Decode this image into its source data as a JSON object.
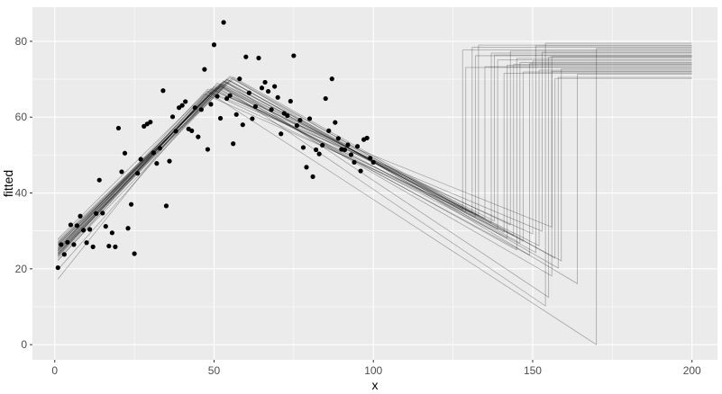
{
  "chart_data": {
    "type": "line",
    "xlabel": "x",
    "ylabel": "fitted",
    "xlim": [
      -7,
      208
    ],
    "ylim": [
      -4,
      89
    ],
    "x_ticks": [
      0,
      50,
      100,
      150,
      200
    ],
    "y_ticks": [
      0,
      20,
      40,
      60,
      80
    ],
    "x_tick_labels": [
      "0",
      "50",
      "100",
      "150",
      "200"
    ],
    "y_tick_labels": [
      "0",
      "20",
      "40",
      "60",
      "80"
    ],
    "grid": true,
    "legend": "none",
    "colors": {
      "panel": "#ebebeb",
      "grid": "#ffffff",
      "point": "#000000",
      "line": "#000000"
    },
    "points": {
      "x": [
        1,
        2,
        3,
        4,
        5,
        6,
        7,
        8,
        9,
        10,
        11,
        12,
        13,
        14,
        15,
        16,
        17,
        18,
        19,
        20,
        21,
        22,
        23,
        24,
        25,
        26,
        27,
        28,
        29,
        30,
        31,
        32,
        33,
        34,
        35,
        36,
        37,
        38,
        39,
        40,
        41,
        42,
        43,
        44,
        45,
        46,
        47,
        48,
        49,
        50,
        51,
        52,
        53,
        54,
        55,
        56,
        57,
        58,
        59,
        60,
        61,
        62,
        63,
        64,
        65,
        66,
        67,
        68,
        69,
        70,
        71,
        72,
        73,
        74,
        75,
        76,
        77,
        78,
        79,
        80,
        81,
        82,
        83,
        84,
        85,
        86,
        87,
        88,
        89,
        90,
        91,
        92,
        93,
        94,
        95,
        96,
        97,
        98,
        99,
        100
      ],
      "y": [
        20.3,
        26.4,
        23.8,
        27,
        31.6,
        26.4,
        31.4,
        33.9,
        30.2,
        26.9,
        30.4,
        25.8,
        34.6,
        43.4,
        34.7,
        31.2,
        26,
        29.5,
        25.8,
        57.1,
        45.6,
        50.5,
        30.7,
        37,
        24,
        45.2,
        48.9,
        57.6,
        58.2,
        58.7,
        50.6,
        47.8,
        51.8,
        67,
        36.6,
        48.4,
        60.1,
        56.3,
        62.5,
        63.1,
        64.1,
        56.9,
        56.4,
        62.5,
        54.8,
        62,
        72.6,
        51.5,
        63.4,
        79.1,
        65.5,
        59.7,
        85,
        64.9,
        65.7,
        53,
        60.7,
        70.1,
        58,
        75.9,
        66.4,
        59.6,
        62.8,
        75.6,
        67.7,
        69.2,
        66.8,
        62,
        68.1,
        65.2,
        55.6,
        61,
        60.4,
        64.2,
        76.2,
        57.8,
        59.2,
        52,
        46.8,
        59.6,
        44.3,
        51.4,
        50.3,
        52.6,
        64.9,
        56.4,
        70.1,
        58.6,
        54.4,
        51.5,
        51.4,
        52.7,
        50.1,
        48.1,
        52.3,
        45.8,
        54.1,
        54.5,
        49.2,
        48.1
      ]
    },
    "fits": [
      {
        "b": 48,
        "y0": 25.1,
        "yb": 67.4,
        "yend": 31.0,
        "jump": 156,
        "ymax": 76.0
      },
      {
        "b": 49,
        "y0": 24.7,
        "yb": 67.5,
        "yend": 29.2,
        "jump": 150,
        "ymax": 74.8
      },
      {
        "b": 50,
        "y0": 25.6,
        "yb": 68.0,
        "yend": 28.1,
        "jump": 142,
        "ymax": 73.7
      },
      {
        "b": 51,
        "y0": 23.2,
        "yb": 68.5,
        "yend": 25.0,
        "jump": 145,
        "ymax": 75.5
      },
      {
        "b": 52,
        "y0": 24.3,
        "yb": 68.9,
        "yend": 32.6,
        "jump": 138,
        "ymax": 76.4
      },
      {
        "b": 53,
        "y0": 26.3,
        "yb": 69.4,
        "yend": 22.1,
        "jump": 159,
        "ymax": 72.7
      },
      {
        "b": 54,
        "y0": 23.6,
        "yb": 69.9,
        "yend": 34.8,
        "jump": 131,
        "ymax": 78.4
      },
      {
        "b": 55,
        "y0": 26.7,
        "yb": 70.4,
        "yend": 27.3,
        "jump": 147,
        "ymax": 71.9
      },
      {
        "b": 47,
        "y0": 27.9,
        "yb": 66.1,
        "yend": 33.3,
        "jump": 135,
        "ymax": 73.3
      },
      {
        "b": 48,
        "y0": 24.0,
        "yb": 66.9,
        "yend": 29.9,
        "jump": 153,
        "ymax": 77.1
      },
      {
        "b": 51,
        "y0": 25.3,
        "yb": 67.8,
        "yend": 23.6,
        "jump": 149,
        "ymax": 74.1
      },
      {
        "b": 52,
        "y0": 22.9,
        "yb": 68.2,
        "yend": 26.1,
        "jump": 152,
        "ymax": 72.4
      },
      {
        "b": 53,
        "y0": 27.1,
        "yb": 68.7,
        "yend": 34.1,
        "jump": 133,
        "ymax": 79.0
      },
      {
        "b": 54,
        "y0": 24.8,
        "yb": 69.3,
        "yend": 30.4,
        "jump": 139,
        "ymax": 75.1
      },
      {
        "b": 55,
        "y0": 22.4,
        "yb": 69.7,
        "yend": 20.2,
        "jump": 158,
        "ymax": 70.5
      },
      {
        "b": 56,
        "y0": 25.9,
        "yb": 70.1,
        "yend": 16.1,
        "jump": 164,
        "ymax": 71.3
      },
      {
        "b": 50,
        "y0": 26.9,
        "yb": 67.2,
        "yend": 35.6,
        "jump": 128,
        "ymax": 77.7
      },
      {
        "b": 49,
        "y0": 23.9,
        "yb": 66.4,
        "yend": 28.7,
        "jump": 144,
        "ymax": 73.9
      },
      {
        "b": 52,
        "y0": 25.5,
        "yb": 68.6,
        "yend": 32.1,
        "jump": 137,
        "ymax": 76.9
      },
      {
        "b": 53,
        "y0": 24.1,
        "yb": 67.9,
        "yend": 18.1,
        "jump": 156,
        "ymax": 72.1
      },
      {
        "b": 54,
        "y0": 26.2,
        "yb": 70.0,
        "yend": 26.8,
        "jump": 146,
        "ymax": 74.4
      },
      {
        "b": 51,
        "y0": 22.1,
        "yb": 69.0,
        "yend": 24.3,
        "jump": 151,
        "ymax": 78.8
      },
      {
        "b": 53,
        "y0": 25.0,
        "yb": 69.6,
        "yend": 12.5,
        "jump": 155,
        "ymax": 75.8
      },
      {
        "b": 55,
        "y0": 27.5,
        "yb": 70.8,
        "yend": 29.6,
        "jump": 141,
        "ymax": 71.6
      },
      {
        "b": 50,
        "y0": 23.4,
        "yb": 67.6,
        "yend": 33.7,
        "jump": 132,
        "ymax": 76.2
      },
      {
        "b": 52,
        "y0": 19.8,
        "yb": 68.3,
        "yend": 10.2,
        "jump": 154,
        "ymax": 79.5
      },
      {
        "b": 48,
        "y0": 17.3,
        "yb": 66.7,
        "yend": 0.0,
        "jump": 170,
        "ymax": 78.1
      },
      {
        "b": 54,
        "y0": 24.6,
        "yb": 69.1,
        "yend": 35.0,
        "jump": 129,
        "ymax": 73.1
      },
      {
        "b": 56,
        "y0": 26.5,
        "yb": 70.6,
        "yend": 22.8,
        "jump": 157,
        "ymax": 70.2
      },
      {
        "b": 51,
        "y0": 23.7,
        "yb": 68.1,
        "yend": 31.6,
        "jump": 143,
        "ymax": 77.4
      }
    ]
  }
}
